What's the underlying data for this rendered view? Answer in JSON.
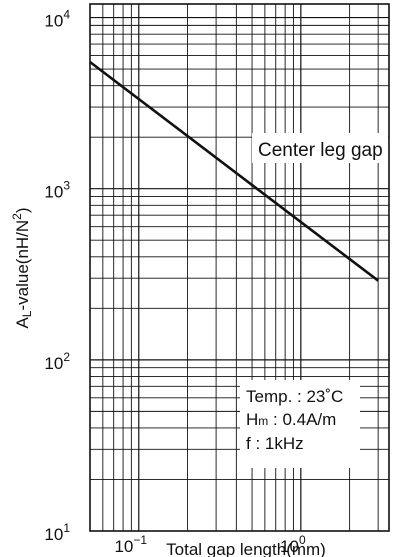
{
  "chart_data": {
    "type": "line",
    "scale": {
      "x": "log",
      "y": "log"
    },
    "xlim": [
      0.05,
      3.5
    ],
    "ylim": [
      10,
      12000
    ],
    "grid": true,
    "title": "Center leg gap",
    "xlabel": "Total gap length(mm)",
    "ylabel": "AL-value(nH/N2)",
    "ylabel_parts": {
      "main": "A",
      "sub": "L",
      "rest": "-value(nH/N",
      "sup": "2",
      "close": ")"
    },
    "x_ticks": [
      {
        "value": 0.1,
        "base": "10",
        "exp": "−1"
      },
      {
        "value": 1,
        "base": "10",
        "exp": "0"
      }
    ],
    "y_ticks": [
      {
        "value": 10,
        "base": "10",
        "exp": "1"
      },
      {
        "value": 100,
        "base": "10",
        "exp": "2"
      },
      {
        "value": 1000,
        "base": "10",
        "exp": "3"
      },
      {
        "value": 10000,
        "base": "10",
        "exp": "4"
      }
    ],
    "series": [
      {
        "name": "Center leg gap",
        "x": [
          0.05,
          3.0
        ],
        "y": [
          5500,
          290
        ]
      }
    ],
    "conditions": {
      "temp": "Temp. : 23˚C",
      "hm_main": "H",
      "hm_sub": "m",
      "hm_rest": " : 0.4A/m",
      "freq": "f : 1kHz"
    }
  }
}
